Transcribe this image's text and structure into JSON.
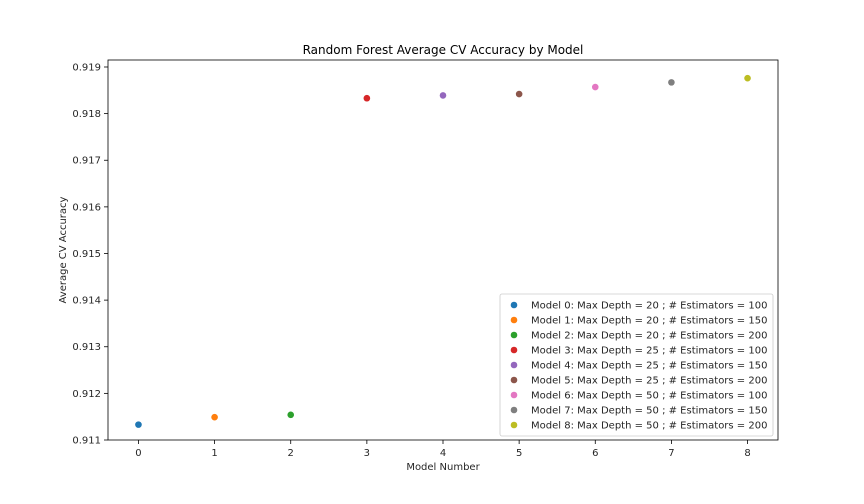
{
  "chart_data": {
    "type": "scatter",
    "title": "Random Forest Average CV Accuracy by Model",
    "xlabel": "Model Number",
    "ylabel": "Average CV Accuracy",
    "xlim": [
      -0.4,
      8.4
    ],
    "ylim": [
      0.911,
      0.91915
    ],
    "xticks": [
      "0",
      "1",
      "2",
      "3",
      "4",
      "5",
      "6",
      "7",
      "8"
    ],
    "yticks": [
      "0.911",
      "0.912",
      "0.913",
      "0.914",
      "0.915",
      "0.916",
      "0.917",
      "0.918",
      "0.919"
    ],
    "grid": false,
    "legend_position": "lower-right",
    "series": [
      {
        "name": "Model 0: Max Depth = 20 ; # Estimators = 100",
        "x": 0,
        "y": 0.91133,
        "color": "#1f77b4"
      },
      {
        "name": "Model 1: Max Depth = 20 ; # Estimators = 150",
        "x": 1,
        "y": 0.91149,
        "color": "#ff7f0e"
      },
      {
        "name": "Model 2: Max Depth = 20 ; # Estimators = 200",
        "x": 2,
        "y": 0.91154,
        "color": "#2ca02c"
      },
      {
        "name": "Model 3: Max Depth = 25 ; # Estimators = 100",
        "x": 3,
        "y": 0.91833,
        "color": "#d62728"
      },
      {
        "name": "Model 4: Max Depth = 25 ; # Estimators = 150",
        "x": 4,
        "y": 0.91839,
        "color": "#9467bd"
      },
      {
        "name": "Model 5: Max Depth = 25 ; # Estimators = 200",
        "x": 5,
        "y": 0.91842,
        "color": "#8c564b"
      },
      {
        "name": "Model 6: Max Depth = 50 ; # Estimators = 100",
        "x": 6,
        "y": 0.91857,
        "color": "#e377c2"
      },
      {
        "name": "Model 7: Max Depth = 50 ; # Estimators = 150",
        "x": 7,
        "y": 0.91867,
        "color": "#7f7f7f"
      },
      {
        "name": "Model 8: Max Depth = 50 ; # Estimators = 200",
        "x": 8,
        "y": 0.91876,
        "color": "#bcbd22"
      }
    ]
  }
}
